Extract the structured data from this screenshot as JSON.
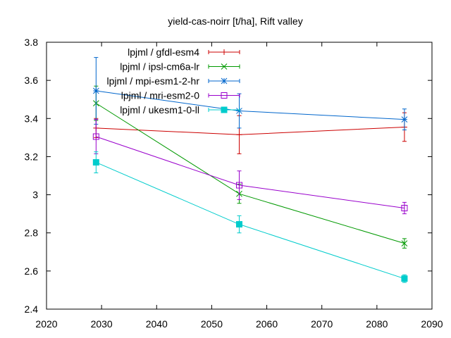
{
  "chart_data": {
    "type": "line",
    "title": "yield-cas-noirr [t/ha], Rift valley",
    "xlabel": "",
    "ylabel": "",
    "xlim": [
      2020,
      2090
    ],
    "ylim": [
      2.4,
      3.8
    ],
    "xticks": [
      2020,
      2030,
      2040,
      2050,
      2060,
      2070,
      2080,
      2090
    ],
    "yticks": [
      2.4,
      2.6,
      2.8,
      3.0,
      3.2,
      3.4,
      3.6,
      3.8
    ],
    "xtick_labels": [
      "2020",
      "2030",
      "2040",
      "2050",
      "2060",
      "2070",
      "2080",
      "2090"
    ],
    "ytick_labels": [
      "2.4",
      "2.6",
      "2.8",
      "3",
      "3.2",
      "3.4",
      "3.6",
      "3.8"
    ],
    "grid": false,
    "legend_position": "top-left",
    "series": [
      {
        "name": "lpjml / gfdl-esm4",
        "color": "#cc0000",
        "marker": "plus",
        "x": [
          2029,
          2055,
          2085
        ],
        "y": [
          3.35,
          3.315,
          3.355
        ],
        "err": [
          0.05,
          0.1,
          0.075
        ]
      },
      {
        "name": "lpjml / ipsl-cm6a-lr",
        "color": "#009900",
        "marker": "cross",
        "x": [
          2029,
          2055,
          2085
        ],
        "y": [
          3.48,
          3.005,
          2.745
        ],
        "err": [
          0.09,
          0.05,
          0.025
        ]
      },
      {
        "name": "lpjml / mpi-esm1-2-hr",
        "color": "#0066cc",
        "marker": "star",
        "x": [
          2029,
          2055,
          2085
        ],
        "y": [
          3.545,
          3.44,
          3.395
        ],
        "err": [
          0.175,
          0.09,
          0.055
        ]
      },
      {
        "name": "lpjml / mri-esm2-0",
        "color": "#9900cc",
        "marker": "square",
        "x": [
          2029,
          2055,
          2085
        ],
        "y": [
          3.305,
          3.05,
          2.93
        ],
        "err": [
          0.09,
          0.075,
          0.03
        ]
      },
      {
        "name": "lpjml / ukesm1-0-ll",
        "color": "#00cccc",
        "marker": "filled-square",
        "x": [
          2029,
          2055,
          2085
        ],
        "y": [
          3.17,
          2.845,
          2.56
        ],
        "err": [
          0.055,
          0.045,
          0.02
        ]
      }
    ]
  }
}
